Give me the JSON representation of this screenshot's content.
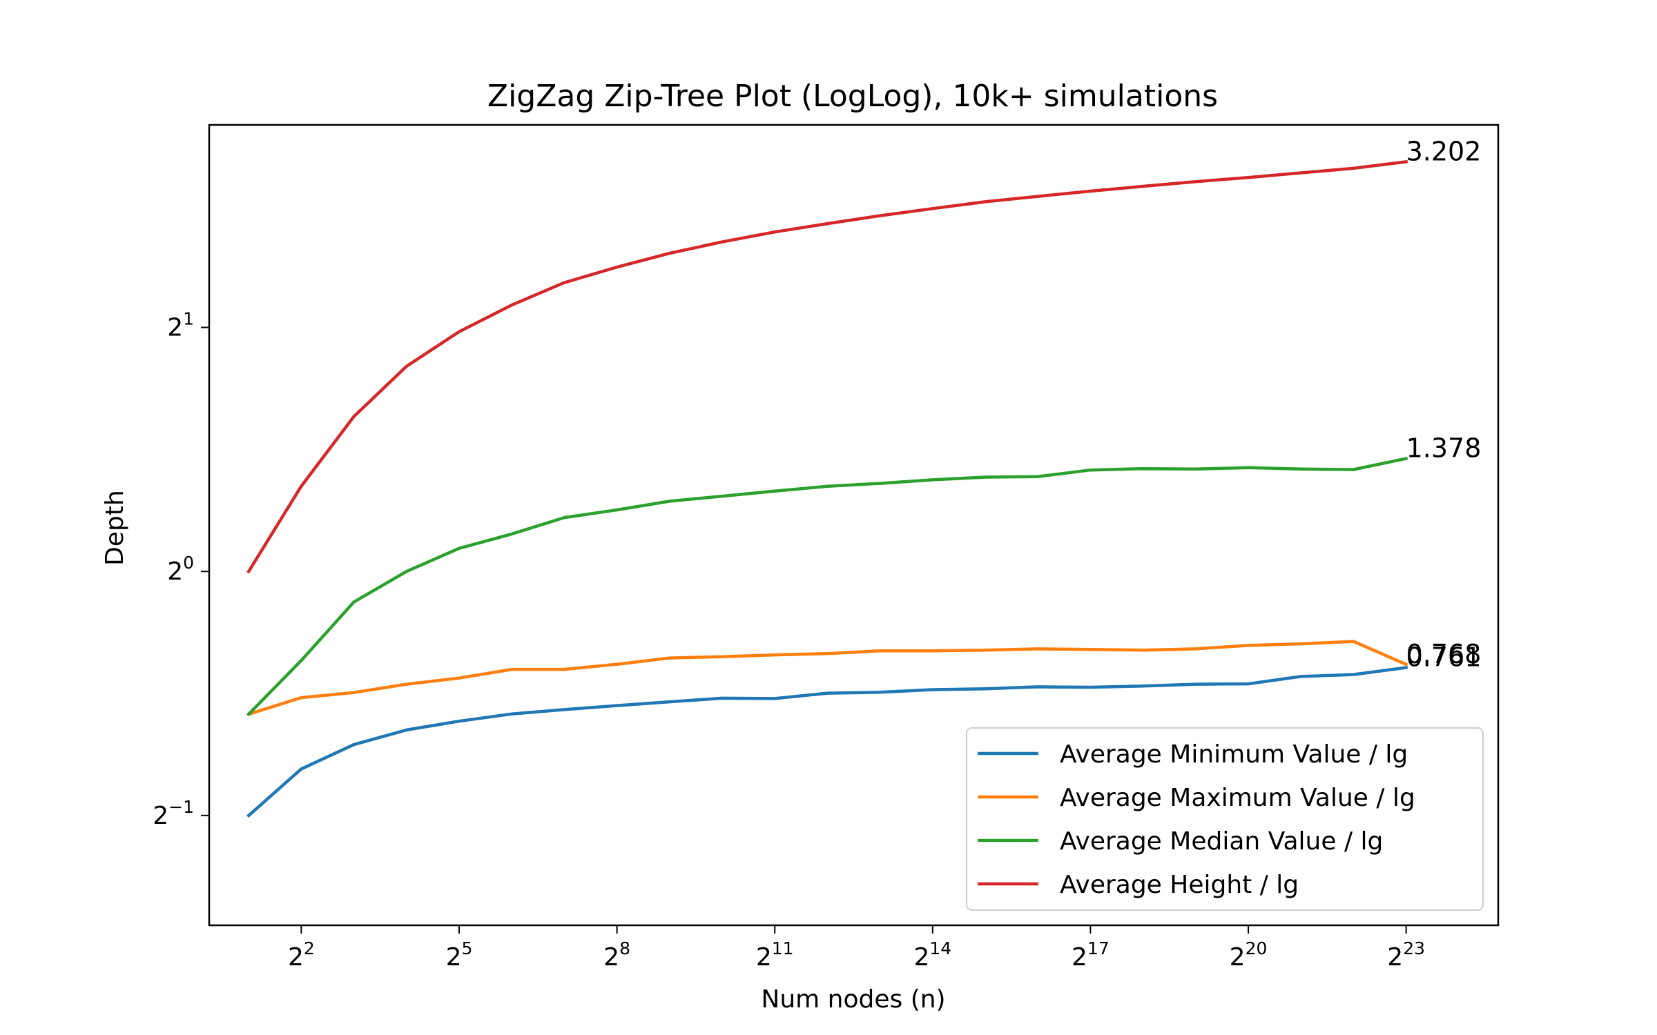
{
  "chart_data": {
    "type": "line",
    "title": "ZigZag Zip-Tree Plot (LogLog), 10k+ simulations",
    "xlabel": "Num nodes (n)",
    "ylabel": "Depth",
    "x_scale": "log2",
    "y_scale": "log2",
    "grid": false,
    "legend_position": "lower-right",
    "xlim_log2": [
      0.25,
      24.75
    ],
    "ylim_log2": [
      -1.45,
      1.83
    ],
    "x_ticks": [
      {
        "base": "2",
        "exp": "2",
        "log2": 2
      },
      {
        "base": "2",
        "exp": "5",
        "log2": 5
      },
      {
        "base": "2",
        "exp": "8",
        "log2": 8
      },
      {
        "base": "2",
        "exp": "11",
        "log2": 11
      },
      {
        "base": "2",
        "exp": "14",
        "log2": 14
      },
      {
        "base": "2",
        "exp": "17",
        "log2": 17
      },
      {
        "base": "2",
        "exp": "20",
        "log2": 20
      },
      {
        "base": "2",
        "exp": "23",
        "log2": 23
      }
    ],
    "y_ticks": [
      {
        "base": "2",
        "exp": "1",
        "log2": 1
      },
      {
        "base": "2",
        "exp": "0",
        "log2": 0
      },
      {
        "base": "2",
        "exp": "−1",
        "log2": -1
      }
    ],
    "x": [
      2,
      4,
      8,
      16,
      32,
      64,
      128,
      256,
      512,
      1024,
      2048,
      4096,
      8192,
      16384,
      32768,
      65536,
      131072,
      262144,
      524288,
      1048576,
      2097152,
      4194304,
      8388608
    ],
    "series": [
      {
        "name": "Average Minimum Value / lg",
        "color": "#1f77b4",
        "values": [
          0.5,
          0.5707,
          0.6116,
          0.6375,
          0.6535,
          0.6671,
          0.6755,
          0.6831,
          0.6906,
          0.6977,
          0.6969,
          0.7077,
          0.7095,
          0.7148,
          0.7166,
          0.7206,
          0.7197,
          0.7221,
          0.726,
          0.7266,
          0.742,
          0.7462,
          0.761
        ],
        "end_label": "0.761"
      },
      {
        "name": "Average Maximum Value / lg",
        "color": "#ff7f0e",
        "values": [
          0.6667,
          0.6987,
          0.7089,
          0.7259,
          0.7388,
          0.7572,
          0.7572,
          0.7682,
          0.7821,
          0.785,
          0.789,
          0.7919,
          0.7982,
          0.7982,
          0.7997,
          0.8026,
          0.8011,
          0.7997,
          0.8026,
          0.8105,
          0.8142,
          0.8197,
          0.768
        ],
        "end_label": "0.768"
      },
      {
        "name": "Average Median Value / lg",
        "color": "#2ca02c",
        "values": [
          0.6667,
          0.7766,
          0.917,
          1.0,
          1.0679,
          1.1122,
          1.1654,
          1.191,
          1.2208,
          1.2383,
          1.2562,
          1.2737,
          1.2842,
          1.2972,
          1.3073,
          1.3092,
          1.3338,
          1.3392,
          1.3375,
          1.3428,
          1.3375,
          1.3357,
          1.378
        ],
        "end_label": "1.378"
      },
      {
        "name": "Average Height / lg",
        "color": "#d62728",
        "values": [
          1.0,
          1.274,
          1.553,
          1.791,
          1.9761,
          2.1313,
          2.2713,
          2.3737,
          2.4686,
          2.5498,
          2.6227,
          2.6858,
          2.747,
          2.8033,
          2.8582,
          2.9019,
          2.9458,
          2.9864,
          3.0259,
          3.062,
          3.1029,
          3.1432,
          3.202
        ],
        "end_label": "3.202"
      }
    ]
  }
}
